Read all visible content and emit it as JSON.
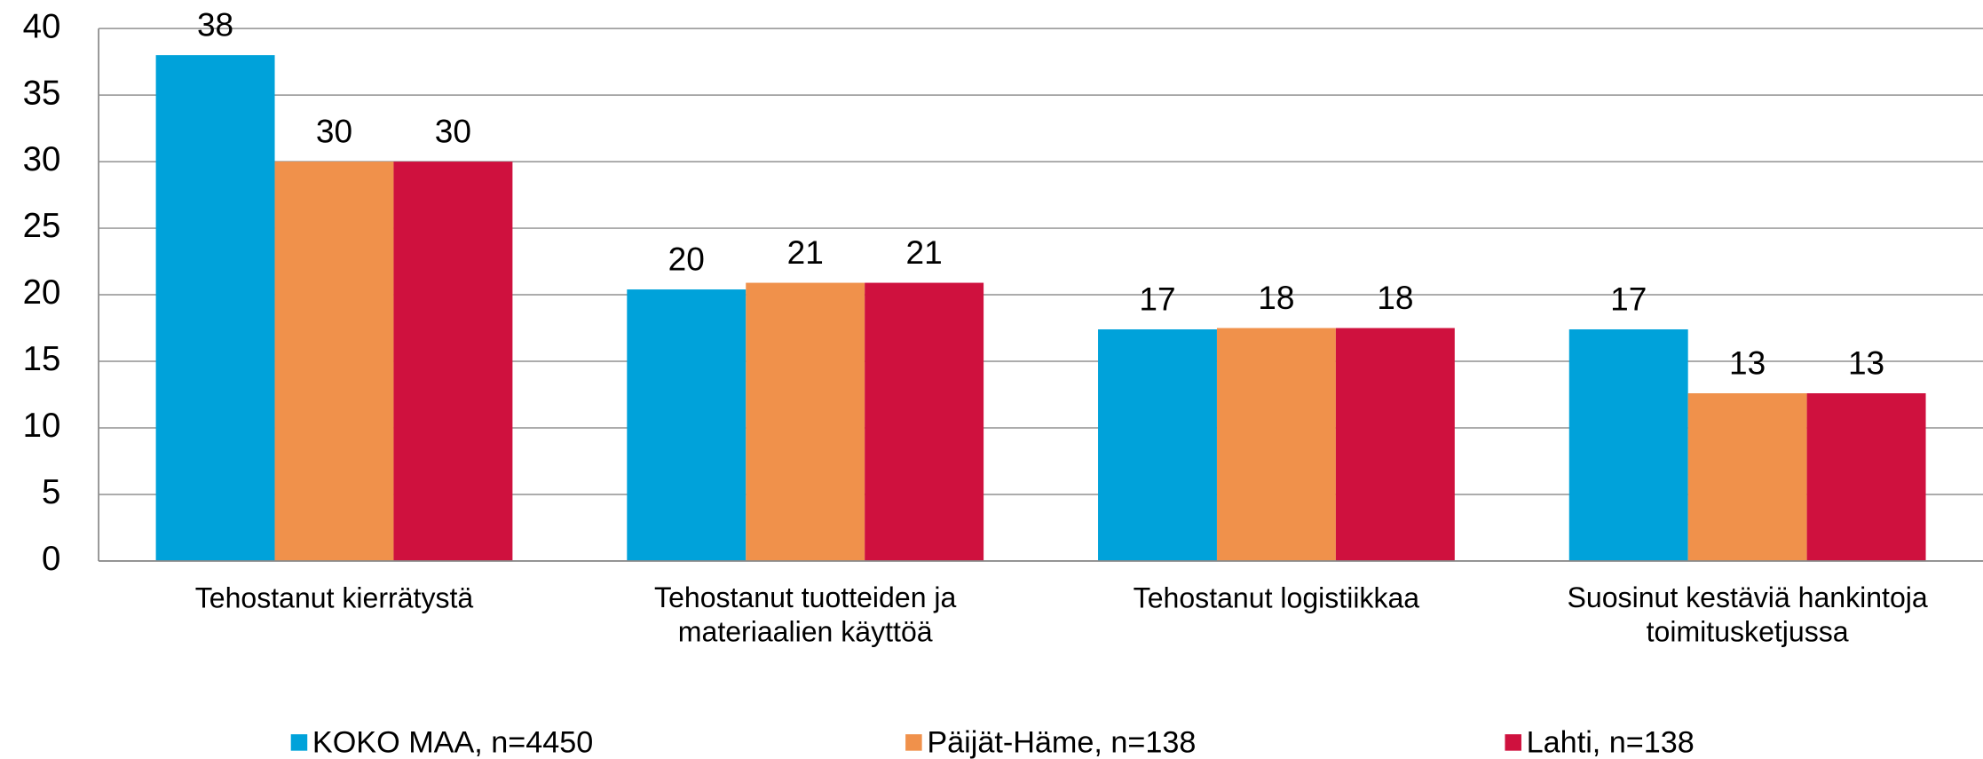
{
  "chart_data": {
    "type": "bar",
    "categories": [
      "Tehostanut kierrätystä",
      "Tehostanut tuotteiden ja\nmateriaalien käyttöä",
      "Tehostanut logistiikkaa",
      "Suosinut kestäviä hankintoja\ntoimitusketjussa"
    ],
    "series": [
      {
        "name": "KOKO MAA, n=4450",
        "color": "#00a2da",
        "values": [
          38,
          20.4,
          17.4,
          17.4
        ],
        "value_labels": [
          "38",
          "20",
          "17",
          "17"
        ]
      },
      {
        "name": "Päijät-Häme, n=138",
        "color": "#f0914b",
        "values": [
          30,
          20.9,
          17.5,
          12.6
        ],
        "value_labels": [
          "30",
          "21",
          "18",
          "13"
        ]
      },
      {
        "name": "Lahti, n=138",
        "color": "#cf113e",
        "values": [
          30,
          20.9,
          17.5,
          12.6
        ],
        "value_labels": [
          "30",
          "21",
          "18",
          "13"
        ]
      }
    ],
    "ylim": [
      0,
      40
    ],
    "yticks": [
      0,
      5,
      10,
      15,
      20,
      25,
      30,
      35,
      40
    ],
    "grid": true,
    "legend": "bottom"
  }
}
